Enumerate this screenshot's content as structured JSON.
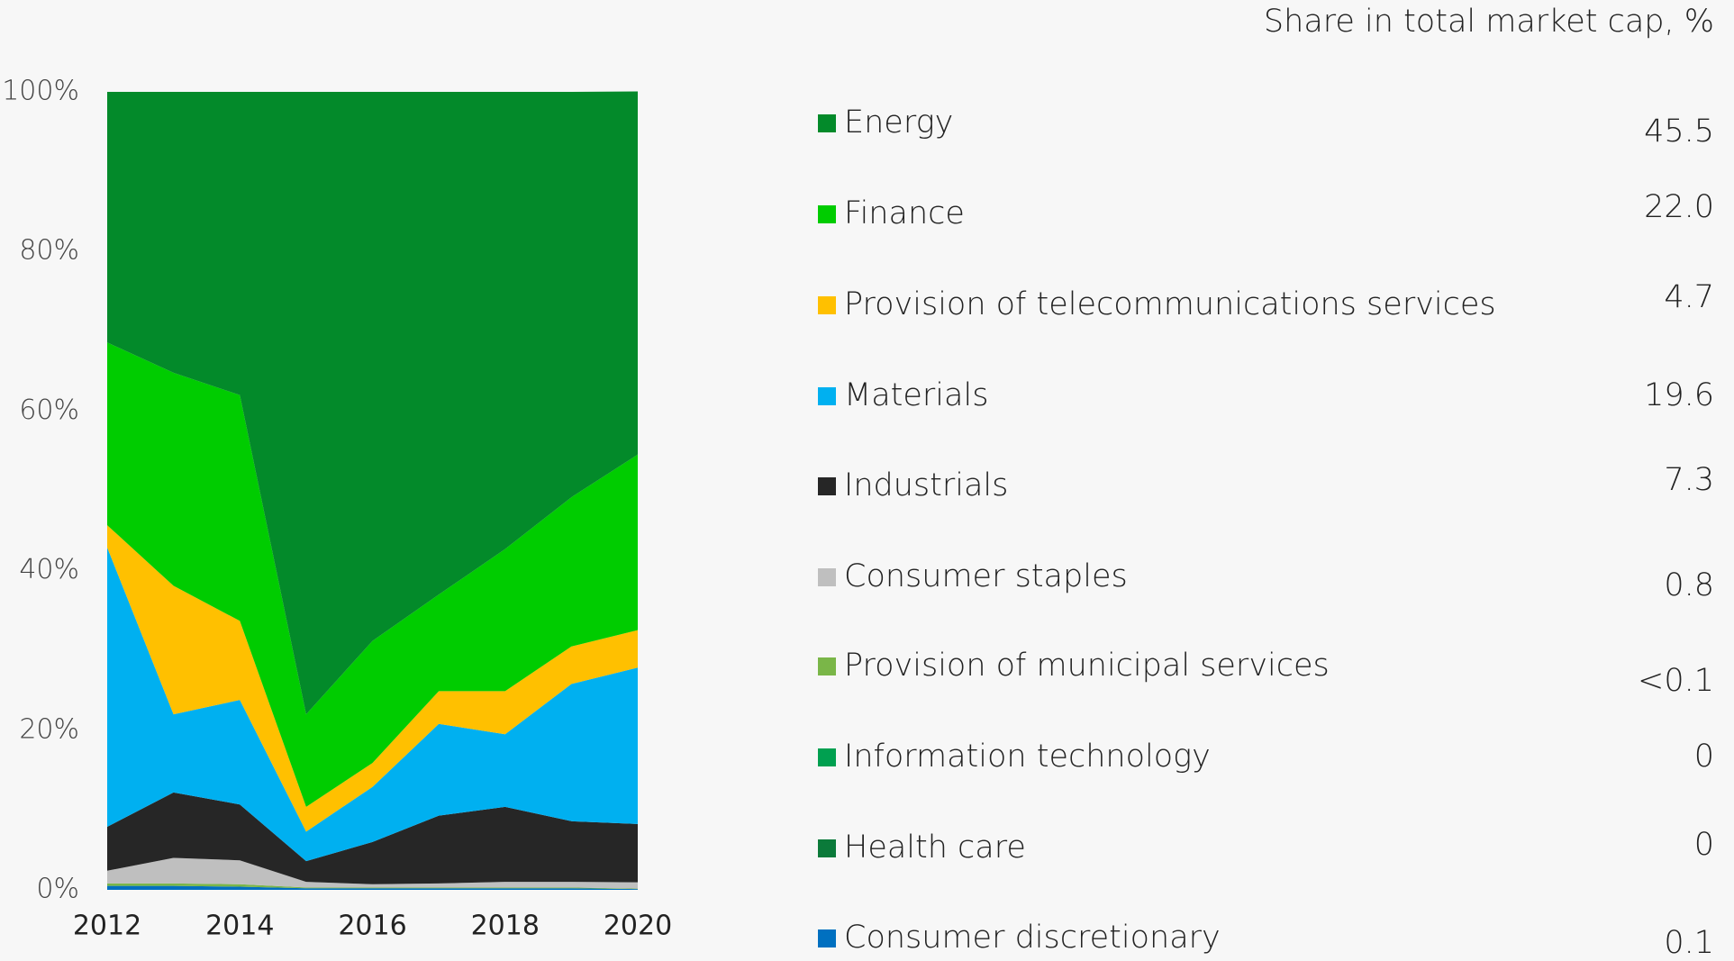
{
  "chart_data": {
    "type": "stacked_area",
    "header": "Share in total market cap, %",
    "x": [
      2012,
      2013,
      2014,
      2015,
      2016,
      2017,
      2018,
      2019,
      2020
    ],
    "xlim": [
      2012,
      2020
    ],
    "xticks": [
      2012,
      2014,
      2016,
      2018,
      2020
    ],
    "ylim": [
      0,
      100
    ],
    "yticks": [
      {
        "value": 0,
        "label": "0%"
      },
      {
        "value": 20,
        "label": "20%"
      },
      {
        "value": 40,
        "label": "40%"
      },
      {
        "value": 60,
        "label": "60%"
      },
      {
        "value": 80,
        "label": "80%"
      },
      {
        "value": 100,
        "label": "100%"
      }
    ],
    "series": [
      {
        "name": "Energy",
        "color": "#038a2a",
        "values": [
          31.4,
          35.2,
          38.0,
          78.0,
          68.8,
          63.0,
          57.3,
          50.8,
          45.5
        ],
        "value_label": "45.5"
      },
      {
        "name": "Finance",
        "color": "#00cc00",
        "values": [
          22.9,
          26.7,
          28.3,
          11.6,
          15.3,
          12.1,
          17.8,
          18.7,
          22.0
        ],
        "value_label": "22.0"
      },
      {
        "name": "Provision of telecommunications services",
        "color": "#ffc000",
        "values": [
          2.8,
          16.1,
          9.9,
          3.1,
          3.0,
          4.1,
          5.4,
          4.7,
          4.7
        ],
        "value_label": "4.7"
      },
      {
        "name": "Materials",
        "color": "#00b0f0",
        "values": [
          35.0,
          9.8,
          13.1,
          3.7,
          6.9,
          11.5,
          9.1,
          17.2,
          19.6
        ],
        "value_label": "19.6"
      },
      {
        "name": "Industrials",
        "color": "#262626",
        "values": [
          5.5,
          8.2,
          7.0,
          2.6,
          5.3,
          8.5,
          9.4,
          7.6,
          7.3
        ],
        "value_label": "7.3"
      },
      {
        "name": "Consumer staples",
        "color": "#bfbfbf",
        "values": [
          1.6,
          3.2,
          3.0,
          0.7,
          0.4,
          0.5,
          0.7,
          0.7,
          0.8
        ],
        "value_label": "0.8"
      },
      {
        "name": "Provision of municipal services",
        "color": "#7ab648",
        "values": [
          0.3,
          0.3,
          0.3,
          0.1,
          0.1,
          0.1,
          0.1,
          0.1,
          0.05
        ],
        "value_label": "<0.1"
      },
      {
        "name": "Information technology",
        "color": "#00a050",
        "values": [
          0,
          0,
          0,
          0,
          0,
          0,
          0,
          0,
          0
        ],
        "value_label": "0"
      },
      {
        "name": "Health care",
        "color": "#0b7a3a",
        "values": [
          0,
          0,
          0,
          0,
          0,
          0,
          0,
          0,
          0
        ],
        "value_label": "0"
      },
      {
        "name": "Consumer discretionary",
        "color": "#0070c0",
        "values": [
          0.5,
          0.5,
          0.4,
          0.2,
          0.2,
          0.2,
          0.2,
          0.2,
          0.1
        ],
        "value_label": "0.1"
      }
    ]
  }
}
